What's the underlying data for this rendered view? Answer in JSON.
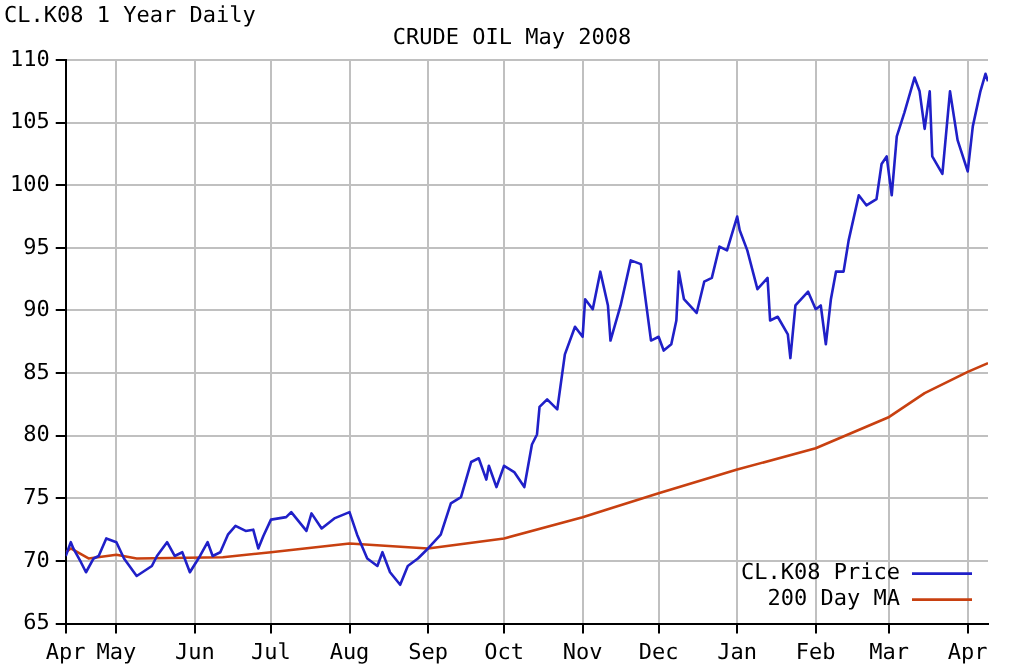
{
  "chart_data": {
    "type": "line",
    "title": "CRUDE OIL May 2008",
    "subtitle": "CL.K08 1 Year Daily",
    "xlim": [
      "2007-04-11",
      "2008-04-09"
    ],
    "xticks": [
      {
        "value": "2007-04-11",
        "label": "Apr"
      },
      {
        "value": "2007-05-01",
        "label": "May"
      },
      {
        "value": "2007-06-01",
        "label": "Jun"
      },
      {
        "value": "2007-07-01",
        "label": "Jul"
      },
      {
        "value": "2007-08-01",
        "label": "Aug"
      },
      {
        "value": "2007-09-01",
        "label": "Sep"
      },
      {
        "value": "2007-10-01",
        "label": "Oct"
      },
      {
        "value": "2007-11-01",
        "label": "Nov"
      },
      {
        "value": "2007-12-01",
        "label": "Dec"
      },
      {
        "value": "2008-01-01",
        "label": "Jan"
      },
      {
        "value": "2008-02-01",
        "label": "Feb"
      },
      {
        "value": "2008-03-01",
        "label": "Mar"
      },
      {
        "value": "2008-04-01",
        "label": "Apr"
      }
    ],
    "ylim": [
      65,
      110
    ],
    "yticks": [
      65,
      70,
      75,
      80,
      85,
      90,
      95,
      100,
      105,
      110
    ],
    "grid": true,
    "legend": "bottom right",
    "marker": "none",
    "line_style": "solid",
    "series": [
      {
        "name": "CL.K08 Price",
        "color": "#2020c8",
        "x": [
          "2007-04-11",
          "2007-04-13",
          "2007-04-14",
          "2007-04-17",
          "2007-04-19",
          "2007-04-22",
          "2007-04-24",
          "2007-04-27",
          "2007-05-01",
          "2007-05-04",
          "2007-05-09",
          "2007-05-15",
          "2007-05-17",
          "2007-05-21",
          "2007-05-24",
          "2007-05-27",
          "2007-05-30",
          "2007-06-03",
          "2007-06-06",
          "2007-06-08",
          "2007-06-11",
          "2007-06-14",
          "2007-06-17",
          "2007-06-21",
          "2007-06-24",
          "2007-06-26",
          "2007-06-28",
          "2007-07-01",
          "2007-07-07",
          "2007-07-09",
          "2007-07-15",
          "2007-07-17",
          "2007-07-21",
          "2007-07-26",
          "2007-08-01",
          "2007-08-04",
          "2007-08-08",
          "2007-08-12",
          "2007-08-14",
          "2007-08-17",
          "2007-08-21",
          "2007-08-24",
          "2007-08-28",
          "2007-09-01",
          "2007-09-06",
          "2007-09-10",
          "2007-09-14",
          "2007-09-18",
          "2007-09-21",
          "2007-09-24",
          "2007-09-25",
          "2007-09-28",
          "2007-10-01",
          "2007-10-05",
          "2007-10-09",
          "2007-10-12",
          "2007-10-14",
          "2007-10-15",
          "2007-10-18",
          "2007-10-22",
          "2007-10-25",
          "2007-10-29",
          "2007-11-01",
          "2007-11-02",
          "2007-11-05",
          "2007-11-08",
          "2007-11-11",
          "2007-11-12",
          "2007-11-16",
          "2007-11-20",
          "2007-11-24",
          "2007-11-28",
          "2007-12-01",
          "2007-12-03",
          "2007-12-06",
          "2007-12-08",
          "2007-12-09",
          "2007-12-11",
          "2007-12-16",
          "2007-12-19",
          "2007-12-22",
          "2007-12-25",
          "2007-12-28",
          "2008-01-01",
          "2008-01-02",
          "2008-01-05",
          "2008-01-09",
          "2008-01-13",
          "2008-01-14",
          "2008-01-17",
          "2008-01-21",
          "2008-01-22",
          "2008-01-24",
          "2008-01-29",
          "2008-02-01",
          "2008-02-03",
          "2008-02-05",
          "2008-02-07",
          "2008-02-09",
          "2008-02-12",
          "2008-02-14",
          "2008-02-18",
          "2008-02-21",
          "2008-02-25",
          "2008-02-27",
          "2008-02-29",
          "2008-03-02",
          "2008-03-04",
          "2008-03-07",
          "2008-03-11",
          "2008-03-13",
          "2008-03-15",
          "2008-03-17",
          "2008-03-18",
          "2008-03-22",
          "2008-03-25",
          "2008-03-28",
          "2008-04-01",
          "2008-04-03",
          "2008-04-06",
          "2008-04-08",
          "2008-04-09"
        ],
        "values": [
          70.4,
          71.5,
          71.0,
          69.9,
          69.1,
          70.2,
          70.4,
          71.8,
          71.5,
          70.2,
          68.8,
          69.6,
          70.4,
          71.5,
          70.4,
          70.7,
          69.1,
          70.4,
          71.5,
          70.4,
          70.7,
          72.1,
          72.8,
          72.4,
          72.5,
          71.0,
          72.0,
          73.3,
          73.5,
          73.9,
          72.4,
          73.8,
          72.6,
          73.4,
          73.9,
          72.1,
          70.2,
          69.6,
          70.7,
          69.1,
          68.1,
          69.6,
          70.2,
          71.0,
          72.1,
          74.6,
          75.1,
          77.9,
          78.2,
          76.5,
          77.6,
          75.9,
          77.6,
          77.1,
          75.9,
          79.3,
          80.1,
          82.3,
          82.9,
          82.1,
          86.5,
          88.7,
          87.9,
          90.9,
          90.1,
          93.1,
          90.4,
          87.6,
          90.4,
          94.0,
          93.7,
          87.6,
          87.9,
          86.8,
          87.3,
          89.2,
          93.1,
          90.9,
          89.8,
          92.3,
          92.6,
          95.1,
          94.8,
          97.5,
          96.4,
          94.8,
          91.7,
          92.6,
          89.2,
          89.5,
          88.1,
          86.2,
          90.4,
          91.5,
          90.1,
          90.4,
          87.3,
          90.9,
          93.1,
          93.1,
          95.6,
          99.2,
          98.4,
          98.9,
          101.7,
          102.3,
          99.2,
          103.9,
          105.8,
          108.6,
          107.5,
          104.5,
          107.5,
          102.3,
          100.9,
          107.5,
          103.6,
          101.1,
          104.7,
          107.5,
          108.9,
          108.3
        ]
      },
      {
        "name": "200 Day MA",
        "color": "#c84010",
        "x": [
          "2007-04-11",
          "2007-04-13",
          "2007-04-20",
          "2007-05-01",
          "2007-05-09",
          "2007-06-12",
          "2007-07-01",
          "2007-08-01",
          "2007-09-01",
          "2007-10-01",
          "2007-11-01",
          "2007-12-01",
          "2008-01-01",
          "2008-02-01",
          "2008-03-01",
          "2008-03-15",
          "2008-04-01",
          "2008-04-09"
        ],
        "values": [
          70.7,
          71.0,
          70.2,
          70.5,
          70.2,
          70.3,
          70.7,
          71.4,
          71.0,
          71.8,
          73.5,
          75.4,
          77.3,
          79.0,
          81.5,
          83.4,
          85.1,
          85.8
        ]
      }
    ]
  }
}
